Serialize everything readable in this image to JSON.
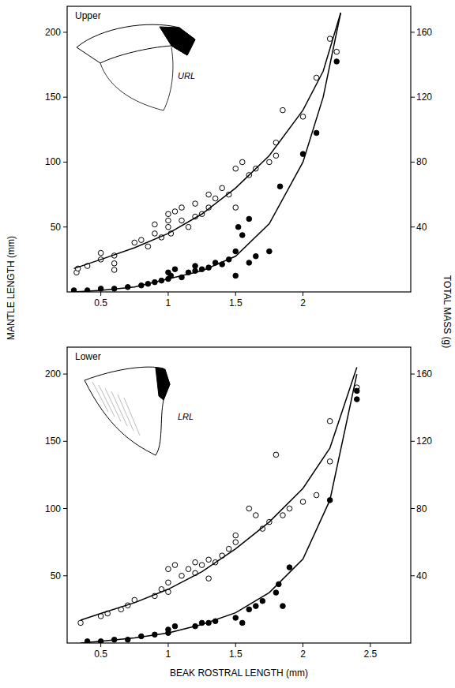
{
  "chart_data": [
    {
      "type": "scatter",
      "annotations": [
        "Upper",
        "URL"
      ],
      "xlim": [
        0.25,
        2.8
      ],
      "xticks": [
        0.5,
        1,
        1.5,
        2
      ],
      "ylim": [
        0,
        220
      ],
      "yticks": [
        50,
        100,
        150,
        200
      ],
      "y2lim": [
        0,
        176
      ],
      "y2ticks": [
        40,
        80,
        120,
        160
      ],
      "grid": false,
      "series": [
        {
          "marker": "open-circle",
          "color": "#000000",
          "x": [
            0.32,
            0.33,
            0.4,
            0.5,
            0.5,
            0.6,
            0.6,
            0.6,
            0.75,
            0.8,
            0.85,
            0.9,
            0.9,
            0.95,
            1.0,
            1.0,
            1.0,
            1.02,
            1.05,
            1.1,
            1.1,
            1.15,
            1.2,
            1.2,
            1.25,
            1.3,
            1.3,
            1.35,
            1.4,
            1.45,
            1.5,
            1.5,
            1.55,
            1.6,
            1.65,
            1.75,
            1.8,
            1.8,
            1.85,
            2.0,
            2.1,
            2.2,
            2.25
          ],
          "values": [
            15,
            18,
            20,
            25,
            30,
            22,
            28,
            17,
            38,
            40,
            35,
            45,
            52,
            42,
            50,
            55,
            60,
            45,
            62,
            55,
            65,
            50,
            58,
            68,
            60,
            75,
            65,
            72,
            80,
            75,
            95,
            65,
            100,
            90,
            95,
            100,
            115,
            105,
            140,
            135,
            165,
            195,
            185
          ]
        },
        {
          "marker": "filled-circle",
          "color": "#000000",
          "axis": "y2",
          "x": [
            0.3,
            0.4,
            0.5,
            0.6,
            0.7,
            0.8,
            0.85,
            0.9,
            0.95,
            1.0,
            1.0,
            1.02,
            1.05,
            1.1,
            1.15,
            1.2,
            1.2,
            1.25,
            1.3,
            1.35,
            1.4,
            1.45,
            1.5,
            1.5,
            1.52,
            1.55,
            1.6,
            1.6,
            1.65,
            1.75,
            1.83,
            2.0,
            2.1,
            2.25
          ],
          "values": [
            1,
            1,
            2,
            2,
            3,
            4,
            5,
            6,
            7,
            8,
            12,
            10,
            14,
            9,
            12,
            13,
            16,
            14,
            15,
            18,
            17,
            20,
            10,
            25,
            40,
            35,
            45,
            18,
            22,
            25,
            65,
            85,
            98,
            142
          ]
        },
        {
          "type": "line",
          "line_style": "solid",
          "color": "#000000",
          "x": [
            0.3,
            0.5,
            0.75,
            1.0,
            1.25,
            1.5,
            1.75,
            2.0,
            2.15,
            2.28
          ],
          "values": [
            18,
            25,
            34,
            45,
            60,
            80,
            105,
            140,
            170,
            215
          ]
        },
        {
          "type": "line",
          "line_style": "solid",
          "color": "#000000",
          "axis": "y2",
          "x": [
            0.3,
            0.5,
            0.75,
            1.0,
            1.25,
            1.5,
            1.75,
            2.0,
            2.15,
            2.28
          ],
          "values": [
            0,
            1,
            3,
            8,
            13,
            22,
            42,
            80,
            120,
            172
          ]
        }
      ]
    },
    {
      "type": "scatter",
      "annotations": [
        "Lower",
        "LRL"
      ],
      "xlim": [
        0.25,
        2.8
      ],
      "xticks": [
        0.5,
        1,
        1.5,
        2,
        2.5
      ],
      "ylim": [
        0,
        220
      ],
      "yticks": [
        50,
        100,
        150,
        200
      ],
      "y2lim": [
        0,
        176
      ],
      "y2ticks": [
        40,
        80,
        120,
        160
      ],
      "grid": false,
      "series": [
        {
          "marker": "open-circle",
          "color": "#000000",
          "x": [
            0.35,
            0.5,
            0.55,
            0.65,
            0.7,
            0.75,
            0.9,
            0.95,
            1.0,
            1.0,
            1.0,
            1.05,
            1.1,
            1.15,
            1.2,
            1.2,
            1.25,
            1.3,
            1.3,
            1.35,
            1.4,
            1.45,
            1.5,
            1.5,
            1.6,
            1.65,
            1.7,
            1.75,
            1.8,
            1.85,
            1.9,
            2.0,
            2.1,
            2.2,
            2.2,
            2.4
          ],
          "values": [
            15,
            20,
            22,
            25,
            28,
            32,
            35,
            40,
            38,
            45,
            55,
            58,
            50,
            55,
            60,
            52,
            58,
            62,
            48,
            60,
            65,
            70,
            75,
            80,
            100,
            95,
            85,
            90,
            140,
            95,
            100,
            105,
            110,
            165,
            135,
            190
          ]
        },
        {
          "marker": "filled-circle",
          "color": "#000000",
          "axis": "y2",
          "x": [
            0.4,
            0.5,
            0.6,
            0.7,
            0.8,
            0.9,
            1.0,
            1.0,
            1.05,
            1.2,
            1.25,
            1.3,
            1.35,
            1.5,
            1.55,
            1.6,
            1.65,
            1.7,
            1.8,
            1.82,
            1.85,
            1.9,
            2.2,
            2.4,
            2.4
          ],
          "values": [
            1,
            1,
            2,
            2,
            4,
            5,
            6,
            8,
            10,
            10,
            12,
            12,
            13,
            15,
            12,
            20,
            22,
            25,
            30,
            35,
            22,
            45,
            85,
            145,
            150
          ]
        },
        {
          "type": "line",
          "line_style": "solid",
          "color": "#000000",
          "x": [
            0.35,
            0.5,
            0.75,
            1.0,
            1.25,
            1.5,
            1.75,
            2.0,
            2.2,
            2.4
          ],
          "values": [
            17,
            22,
            30,
            40,
            53,
            70,
            90,
            115,
            145,
            205
          ]
        },
        {
          "type": "line",
          "line_style": "solid",
          "color": "#000000",
          "axis": "y2",
          "x": [
            0.35,
            0.5,
            0.75,
            1.0,
            1.25,
            1.5,
            1.75,
            2.0,
            2.2,
            2.4
          ],
          "values": [
            0,
            1,
            3,
            6,
            11,
            18,
            30,
            50,
            85,
            160
          ]
        }
      ],
      "x_label": "BEAK ROSTRAL LENGTH (mm)"
    }
  ],
  "shared_labels": {
    "y": "MANTLE LENGTH (mm)",
    "y2": "TOTAL MASS (g)"
  }
}
